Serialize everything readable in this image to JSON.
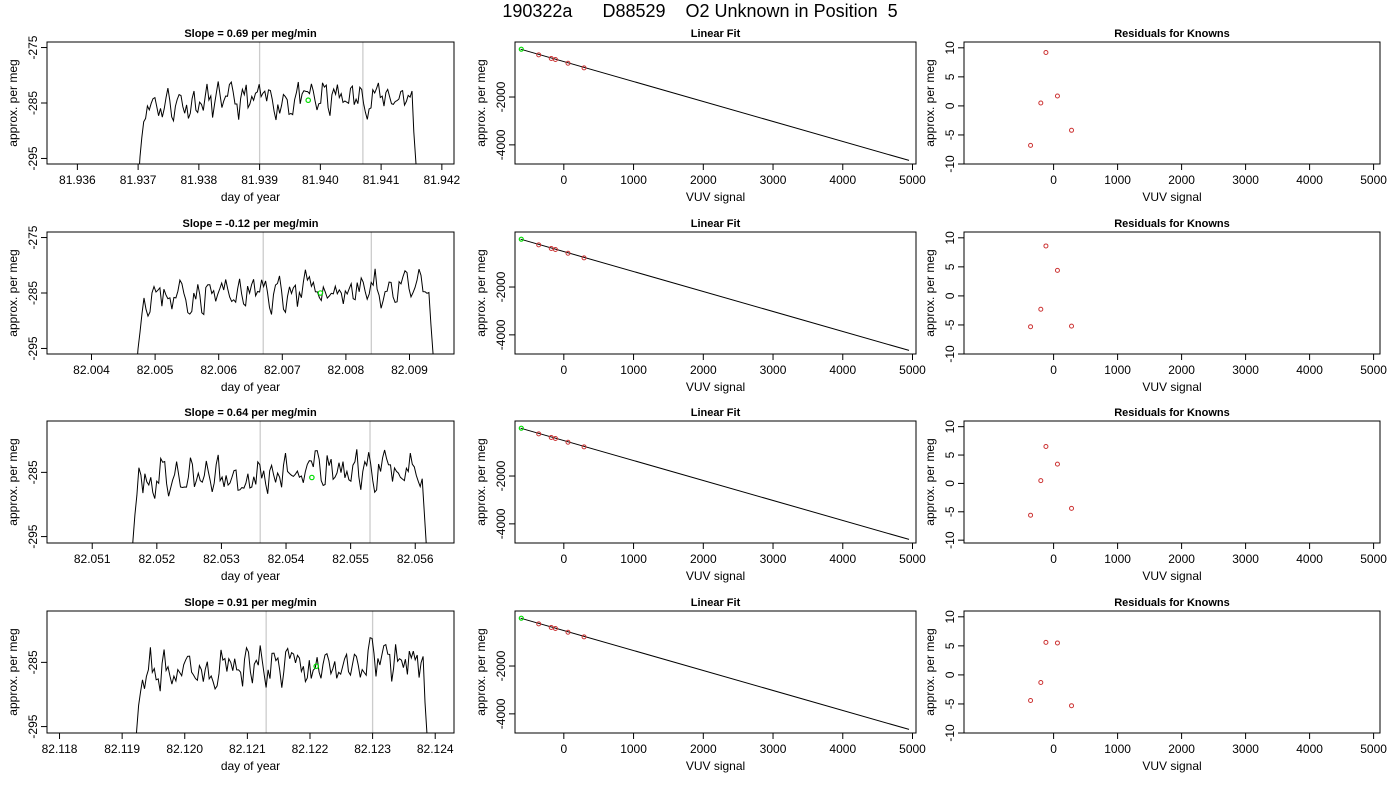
{
  "title": "190322a      D88529    O2 Unknown in Position  5",
  "colors": {
    "trace": "#000000",
    "unknown_point": "#00dd00",
    "known_points": "#cc3333",
    "marker_lines": "#cccccc"
  },
  "chart_data": [
    {
      "type": "line",
      "row": 1,
      "panel": "time-series",
      "title": "Slope =  0.69  per meg/min",
      "xlabel": "day of year",
      "ylabel": "approx. per meg",
      "xlim": [
        81.9355,
        81.9422
      ],
      "ylim": [
        -296,
        -274
      ],
      "xticks": [
        "81.936",
        "81.937",
        "81.938",
        "81.939",
        "81.940",
        "81.941",
        "81.942"
      ],
      "yticks": [
        "-275",
        "-285",
        "-295"
      ],
      "trace_x_range": [
        81.937,
        81.9416
      ],
      "markers": [
        81.939,
        81.9407
      ],
      "highlight": {
        "x": 81.9398,
        "y": -284.5
      },
      "baseline": -285.2,
      "noise": 1.4,
      "seed": 11
    },
    {
      "type": "scatter",
      "row": 1,
      "panel": "linear-fit",
      "title": "Linear Fit",
      "xlabel": "VUV signal",
      "ylabel": "approx. per meg",
      "xlim": [
        -700,
        5050
      ],
      "ylim": [
        -4800,
        300
      ],
      "xticks": [
        "0",
        "1000",
        "2000",
        "3000",
        "4000",
        "5000"
      ],
      "yticks": [
        "-2000",
        "-4000"
      ],
      "fit_line": [
        [
          -620,
          0
        ],
        [
          4950,
          -4650
        ]
      ],
      "known_points": [
        [
          -360,
          -240
        ],
        [
          -180,
          -390
        ],
        [
          -120,
          -430
        ],
        [
          60,
          -590
        ],
        [
          290,
          -780
        ]
      ],
      "unknown_point": [
        -610,
        0
      ]
    },
    {
      "type": "scatter",
      "row": 1,
      "panel": "residuals",
      "title": "Residuals for Knowns",
      "xlabel": "VUV signal",
      "ylabel": "approx. per meg",
      "xlim": [
        -1400,
        5100
      ],
      "ylim": [
        -10,
        11
      ],
      "xticks": [
        "0",
        "1000",
        "2000",
        "3000",
        "4000",
        "5000"
      ],
      "yticks": [
        "10",
        "5",
        "0",
        "-5",
        "-10"
      ],
      "known_points": [
        [
          -360,
          -6.8
        ],
        [
          -200,
          0.5
        ],
        [
          -120,
          9.2
        ],
        [
          60,
          1.7
        ],
        [
          280,
          -4.2
        ]
      ]
    },
    {
      "type": "line",
      "row": 2,
      "panel": "time-series",
      "title": "Slope =  -0.12  per meg/min",
      "xlabel": "day of year",
      "ylabel": "approx. per meg",
      "xlim": [
        82.0033,
        82.0097
      ],
      "ylim": [
        -296,
        -274
      ],
      "xticks": [
        "82.004",
        "82.005",
        "82.006",
        "82.007",
        "82.008",
        "82.009"
      ],
      "yticks": [
        "-275",
        "-285",
        "-295"
      ],
      "trace_x_range": [
        82.0047,
        82.0094
      ],
      "markers": [
        82.0067,
        82.0084
      ],
      "highlight": {
        "x": 82.0076,
        "y": -285.0
      },
      "baseline": -285.6,
      "noise": 1.5,
      "seed": 23
    },
    {
      "type": "scatter",
      "row": 2,
      "panel": "linear-fit",
      "title": "Linear Fit",
      "xlabel": "VUV signal",
      "ylabel": "approx. per meg",
      "xlim": [
        -700,
        5050
      ],
      "ylim": [
        -4800,
        300
      ],
      "xticks": [
        "0",
        "1000",
        "2000",
        "3000",
        "4000",
        "5000"
      ],
      "yticks": [
        "-2000",
        "-4000"
      ],
      "fit_line": [
        [
          -620,
          0
        ],
        [
          4950,
          -4650
        ]
      ],
      "known_points": [
        [
          -360,
          -240
        ],
        [
          -180,
          -390
        ],
        [
          -120,
          -430
        ],
        [
          60,
          -590
        ],
        [
          290,
          -780
        ]
      ],
      "unknown_point": [
        -610,
        0
      ]
    },
    {
      "type": "scatter",
      "row": 2,
      "panel": "residuals",
      "title": "Residuals for Knowns",
      "xlabel": "VUV signal",
      "ylabel": "approx. per meg",
      "xlim": [
        -1400,
        5100
      ],
      "ylim": [
        -10,
        11
      ],
      "xticks": [
        "0",
        "1000",
        "2000",
        "3000",
        "4000",
        "5000"
      ],
      "yticks": [
        "10",
        "5",
        "0",
        "-5",
        "-10"
      ],
      "known_points": [
        [
          -360,
          -5.3
        ],
        [
          -200,
          -2.3
        ],
        [
          -120,
          8.6
        ],
        [
          60,
          4.4
        ],
        [
          280,
          -5.2
        ]
      ]
    },
    {
      "type": "line",
      "row": 3,
      "panel": "time-series",
      "title": "Slope =  0.64  per meg/min",
      "xlabel": "day of year",
      "ylabel": "approx. per meg",
      "xlim": [
        82.0503,
        82.0566
      ],
      "ylim": [
        -296,
        -277
      ],
      "xticks": [
        "82.051",
        "82.052",
        "82.053",
        "82.054",
        "82.055",
        "82.056"
      ],
      "yticks": [
        "-285",
        "-295"
      ],
      "trace_x_range": [
        82.0516,
        82.0562
      ],
      "markers": [
        82.0536,
        82.0553
      ],
      "highlight": {
        "x": 82.0544,
        "y": -285.8
      },
      "baseline": -286.0,
      "noise": 1.5,
      "seed": 37
    },
    {
      "type": "scatter",
      "row": 3,
      "panel": "linear-fit",
      "title": "Linear Fit",
      "xlabel": "VUV signal",
      "ylabel": "approx. per meg",
      "xlim": [
        -700,
        5050
      ],
      "ylim": [
        -4800,
        300
      ],
      "xticks": [
        "0",
        "1000",
        "2000",
        "3000",
        "4000",
        "5000"
      ],
      "yticks": [
        "-2000",
        "-4000"
      ],
      "fit_line": [
        [
          -620,
          0
        ],
        [
          4950,
          -4650
        ]
      ],
      "known_points": [
        [
          -360,
          -240
        ],
        [
          -180,
          -390
        ],
        [
          -120,
          -430
        ],
        [
          60,
          -590
        ],
        [
          290,
          -780
        ]
      ],
      "unknown_point": [
        -610,
        0
      ]
    },
    {
      "type": "scatter",
      "row": 3,
      "panel": "residuals",
      "title": "Residuals for Knowns",
      "xlabel": "VUV signal",
      "ylabel": "approx. per meg",
      "xlim": [
        -1400,
        5100
      ],
      "ylim": [
        -10.5,
        11
      ],
      "xticks": [
        "0",
        "1000",
        "2000",
        "3000",
        "4000",
        "5000"
      ],
      "yticks": [
        "10",
        "5",
        "0",
        "-5",
        "-10"
      ],
      "known_points": [
        [
          -360,
          -5.6
        ],
        [
          -200,
          0.5
        ],
        [
          -120,
          6.5
        ],
        [
          60,
          3.4
        ],
        [
          280,
          -4.4
        ]
      ]
    },
    {
      "type": "line",
      "row": 4,
      "panel": "time-series",
      "title": "Slope =  0.91  per meg/min",
      "xlabel": "day of year",
      "ylabel": "approx. per meg",
      "xlim": [
        82.1178,
        82.1243
      ],
      "ylim": [
        -296,
        -277
      ],
      "xticks": [
        "82.118",
        "82.119",
        "82.120",
        "82.121",
        "82.122",
        "82.123",
        "82.124"
      ],
      "yticks": [
        "-285",
        "-295"
      ],
      "trace_x_range": [
        82.1192,
        82.1239
      ],
      "markers": [
        82.1213,
        82.123
      ],
      "highlight": {
        "x": 82.1221,
        "y": -285.6
      },
      "baseline": -286.2,
      "noise": 1.6,
      "seed": 53
    },
    {
      "type": "scatter",
      "row": 4,
      "panel": "linear-fit",
      "title": "Linear Fit",
      "xlabel": "VUV signal",
      "ylabel": "approx. per meg",
      "xlim": [
        -700,
        5050
      ],
      "ylim": [
        -4800,
        300
      ],
      "xticks": [
        "0",
        "1000",
        "2000",
        "3000",
        "4000",
        "5000"
      ],
      "yticks": [
        "-2000",
        "-4000"
      ],
      "fit_line": [
        [
          -620,
          0
        ],
        [
          4950,
          -4650
        ]
      ],
      "known_points": [
        [
          -360,
          -240
        ],
        [
          -180,
          -390
        ],
        [
          -120,
          -430
        ],
        [
          60,
          -590
        ],
        [
          290,
          -780
        ]
      ],
      "unknown_point": [
        -610,
        0
      ]
    },
    {
      "type": "scatter",
      "row": 4,
      "panel": "residuals",
      "title": "Residuals for Knowns",
      "xlabel": "VUV signal",
      "ylabel": "approx. per meg",
      "xlim": [
        -1400,
        5100
      ],
      "ylim": [
        -10,
        11
      ],
      "xticks": [
        "0",
        "1000",
        "2000",
        "3000",
        "4000",
        "5000"
      ],
      "yticks": [
        "10",
        "5",
        "0",
        "-5",
        "-10"
      ],
      "known_points": [
        [
          -360,
          -4.4
        ],
        [
          -200,
          -1.3
        ],
        [
          -120,
          5.6
        ],
        [
          60,
          5.5
        ],
        [
          280,
          -5.3
        ]
      ]
    }
  ]
}
